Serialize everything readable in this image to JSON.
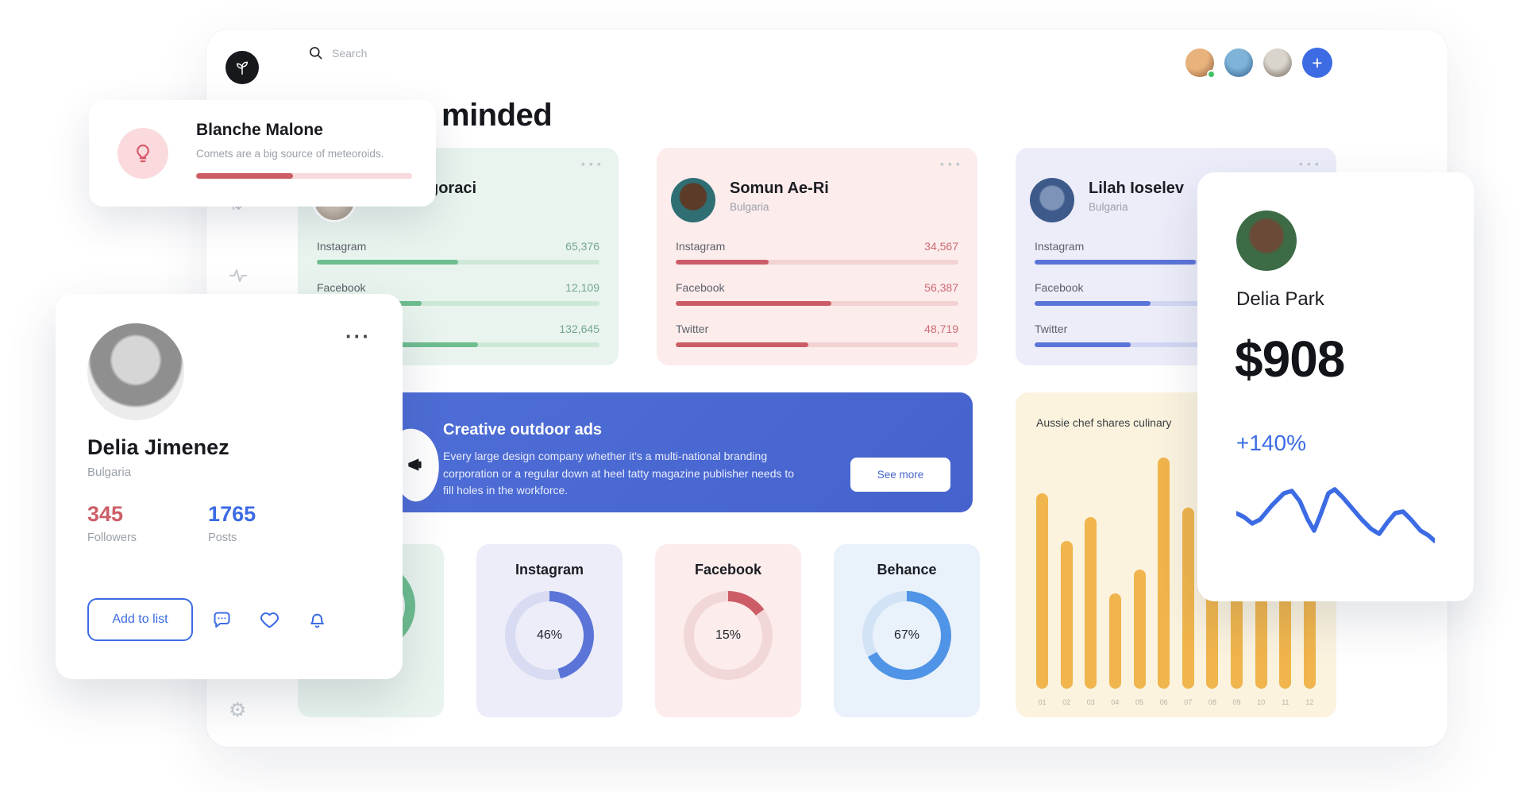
{
  "colors": {
    "accent_blue": "#3c6be4",
    "accent_red": "#cc5d66",
    "accent_green": "#6dbd8f",
    "accent_yellow": "#f0b54c",
    "banner_blue": "#4b68d3"
  },
  "topbar": {
    "search_placeholder": "Search",
    "plus_label": "+"
  },
  "icons": {
    "menu_dots": "···",
    "sort_glyph": "⇅",
    "gear_glyph": "⚙"
  },
  "heading": "minded",
  "tip_card": {
    "name": "Blanche Malone",
    "subtitle": "Comets are a big source of meteoroids.",
    "progress_percent": 45
  },
  "influencers": [
    {
      "name": "goraci",
      "country": "",
      "theme": "green",
      "stats": [
        {
          "label": "Instagram",
          "value": "65,376",
          "pct": 50
        },
        {
          "label": "Facebook",
          "value": "12,109",
          "pct": 37
        },
        {
          "label": "Twitter",
          "value": "132,645",
          "pct": 57
        }
      ]
    },
    {
      "name": "Somun Ae-Ri",
      "country": "Bulgaria",
      "theme": "red",
      "stats": [
        {
          "label": "Instagram",
          "value": "34,567",
          "pct": 33
        },
        {
          "label": "Facebook",
          "value": "56,387",
          "pct": 55
        },
        {
          "label": "Twitter",
          "value": "48,719",
          "pct": 47
        }
      ]
    },
    {
      "name": "Lilah Ioselev",
      "country": "Bulgaria",
      "theme": "blue",
      "stats": [
        {
          "label": "Instagram",
          "value": "",
          "pct": 57
        },
        {
          "label": "Facebook",
          "value": "",
          "pct": 41
        },
        {
          "label": "Twitter",
          "value": "",
          "pct": 34
        }
      ]
    }
  ],
  "banner": {
    "title": "Creative outdoor ads",
    "body": "Every large design company whether it's a multi-national branding corporation or a regular down at heel tatty magazine publisher needs to fill holes in the workforce.",
    "cta": "See more"
  },
  "platform_cards": [
    {
      "label": "",
      "percent": 75,
      "percent_label": "",
      "theme": "green"
    },
    {
      "label": "Instagram",
      "percent": 46,
      "percent_label": "46%",
      "theme": "purple"
    },
    {
      "label": "Facebook",
      "percent": 15,
      "percent_label": "15%",
      "theme": "red"
    },
    {
      "label": "Behance",
      "percent": 67,
      "percent_label": "67%",
      "theme": "blue"
    }
  ],
  "chart_data": [
    {
      "type": "bar",
      "title": "Aussie chef shares culinary",
      "categories": [
        "01",
        "02",
        "03",
        "04",
        "05",
        "06",
        "07",
        "08",
        "09",
        "10",
        "11",
        "12"
      ],
      "values": [
        82,
        62,
        72,
        40,
        50,
        97,
        76,
        58,
        55,
        45,
        64,
        60
      ],
      "xlabel": "",
      "ylabel": "",
      "ylim": [
        0,
        100
      ],
      "grid": false,
      "legend": false,
      "bar_color": "#f0b54c"
    },
    {
      "type": "line",
      "points": [
        [
          0,
          50
        ],
        [
          10,
          55
        ],
        [
          20,
          63
        ],
        [
          30,
          58
        ],
        [
          45,
          40
        ],
        [
          60,
          25
        ],
        [
          70,
          22
        ],
        [
          80,
          35
        ],
        [
          90,
          58
        ],
        [
          98,
          72
        ],
        [
          106,
          52
        ],
        [
          116,
          25
        ],
        [
          124,
          20
        ],
        [
          134,
          30
        ],
        [
          146,
          44
        ],
        [
          158,
          58
        ],
        [
          170,
          70
        ],
        [
          180,
          76
        ],
        [
          190,
          62
        ],
        [
          200,
          50
        ],
        [
          210,
          48
        ],
        [
          220,
          58
        ],
        [
          232,
          72
        ],
        [
          242,
          78
        ],
        [
          250,
          85
        ]
      ],
      "line_color": "#3c6be4"
    }
  ],
  "profile_card": {
    "name": "Delia Jimenez",
    "country": "Bulgaria",
    "followers_value": "345",
    "followers_label": "Followers",
    "posts_value": "1765",
    "posts_label": "Posts",
    "add_button_label": "Add to list"
  },
  "earnings_card": {
    "name": "Delia Park",
    "amount": "$908",
    "growth": "+140%"
  }
}
